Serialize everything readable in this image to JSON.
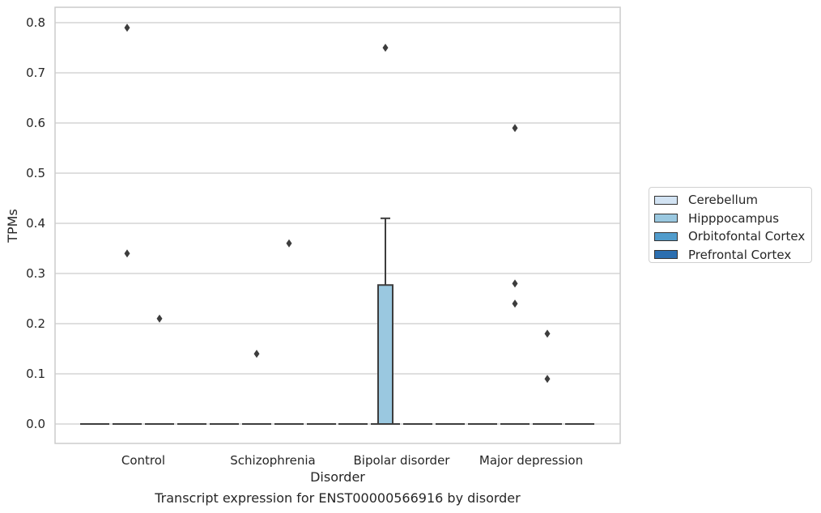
{
  "caption": "Transcript expression for ENST00000566916 by disorder",
  "chart_data": {
    "type": "box",
    "xlabel": "Disorder",
    "ylabel": "TPMs",
    "ylim": [
      -0.04,
      0.83
    ],
    "yticks": [
      "0.0",
      "0.1",
      "0.2",
      "0.3",
      "0.4",
      "0.5",
      "0.6",
      "0.7",
      "0.8"
    ],
    "grid": true,
    "legend_position": "right",
    "categories": [
      "Control",
      "Schizophrenia",
      "Bipolar disorder",
      "Major depression"
    ],
    "series": [
      {
        "name": "Cerebellum",
        "color": "#d2e3f3"
      },
      {
        "name": "Hipppocampus",
        "color": "#9ac8e0"
      },
      {
        "name": "Orbitofontal Cortex",
        "color": "#519ccc"
      },
      {
        "name": "Prefrontal Cortex",
        "color": "#2c6fb0"
      }
    ],
    "boxes": [
      {
        "category": 0,
        "series": 0,
        "q1": 0,
        "median": 0,
        "q3": 0,
        "whisker_low": 0,
        "whisker_high": 0,
        "outliers": []
      },
      {
        "category": 0,
        "series": 1,
        "q1": 0,
        "median": 0,
        "q3": 0,
        "whisker_low": 0,
        "whisker_high": 0,
        "outliers": [
          0.79,
          0.34
        ]
      },
      {
        "category": 0,
        "series": 2,
        "q1": 0,
        "median": 0,
        "q3": 0,
        "whisker_low": 0,
        "whisker_high": 0,
        "outliers": [
          0.21
        ]
      },
      {
        "category": 0,
        "series": 3,
        "q1": 0,
        "median": 0,
        "q3": 0,
        "whisker_low": 0,
        "whisker_high": 0,
        "outliers": []
      },
      {
        "category": 1,
        "series": 0,
        "q1": 0,
        "median": 0,
        "q3": 0,
        "whisker_low": 0,
        "whisker_high": 0,
        "outliers": []
      },
      {
        "category": 1,
        "series": 1,
        "q1": 0,
        "median": 0,
        "q3": 0,
        "whisker_low": 0,
        "whisker_high": 0,
        "outliers": [
          0.14
        ]
      },
      {
        "category": 1,
        "series": 2,
        "q1": 0,
        "median": 0,
        "q3": 0,
        "whisker_low": 0,
        "whisker_high": 0,
        "outliers": [
          0.36
        ]
      },
      {
        "category": 1,
        "series": 3,
        "q1": 0,
        "median": 0,
        "q3": 0,
        "whisker_low": 0,
        "whisker_high": 0,
        "outliers": []
      },
      {
        "category": 2,
        "series": 0,
        "q1": 0,
        "median": 0,
        "q3": 0,
        "whisker_low": 0,
        "whisker_high": 0,
        "outliers": []
      },
      {
        "category": 2,
        "series": 1,
        "q1": 0,
        "median": 0,
        "q3": 0.277,
        "whisker_low": 0,
        "whisker_high": 0.41,
        "outliers": [
          0.75
        ]
      },
      {
        "category": 2,
        "series": 2,
        "q1": 0,
        "median": 0,
        "q3": 0,
        "whisker_low": 0,
        "whisker_high": 0,
        "outliers": []
      },
      {
        "category": 2,
        "series": 3,
        "q1": 0,
        "median": 0,
        "q3": 0,
        "whisker_low": 0,
        "whisker_high": 0,
        "outliers": []
      },
      {
        "category": 3,
        "series": 0,
        "q1": 0,
        "median": 0,
        "q3": 0,
        "whisker_low": 0,
        "whisker_high": 0,
        "outliers": []
      },
      {
        "category": 3,
        "series": 1,
        "q1": 0,
        "median": 0,
        "q3": 0,
        "whisker_low": 0,
        "whisker_high": 0,
        "outliers": [
          0.59,
          0.28,
          0.24
        ]
      },
      {
        "category": 3,
        "series": 2,
        "q1": 0,
        "median": 0,
        "q3": 0,
        "whisker_low": 0,
        "whisker_high": 0,
        "outliers": [
          0.18,
          0.09
        ]
      },
      {
        "category": 3,
        "series": 3,
        "q1": 0,
        "median": 0,
        "q3": 0,
        "whisker_low": 0,
        "whisker_high": 0,
        "outliers": []
      }
    ]
  }
}
